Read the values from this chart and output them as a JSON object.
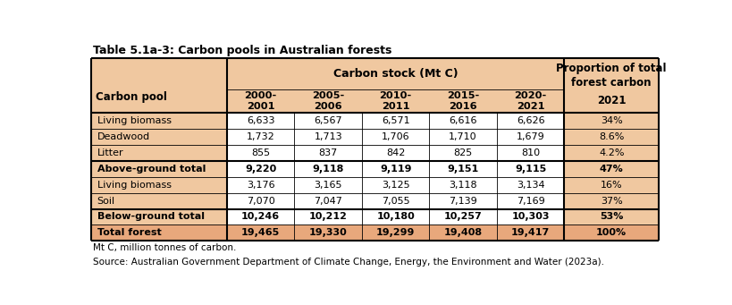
{
  "title": "Table 5.1a-3: Carbon pools in Australian forests",
  "footnote1": "Mt C, million tonnes of carbon.",
  "footnote2": "Source: Australian Government Department of Climate Change, Energy, the Environment and Water (2023a).",
  "col_header1": "Carbon stock (Mt C)",
  "col_header2": "Proportion of total\nforest carbon",
  "sub_headers": [
    "2000-\n2001",
    "2005-\n2006",
    "2010-\n2011",
    "2015-\n2016",
    "2020-\n2021"
  ],
  "row_label_header": "Carbon pool",
  "proportion_year": "2021",
  "rows": [
    {
      "label": "Living biomass",
      "bold": false,
      "values": [
        "6,633",
        "6,567",
        "6,571",
        "6,616",
        "6,626",
        "34%"
      ]
    },
    {
      "label": "Deadwood",
      "bold": false,
      "values": [
        "1,732",
        "1,713",
        "1,706",
        "1,710",
        "1,679",
        "8.6%"
      ]
    },
    {
      "label": "Litter",
      "bold": false,
      "values": [
        "855",
        "837",
        "842",
        "825",
        "810",
        "4.2%"
      ]
    },
    {
      "label": "Above-ground total",
      "bold": true,
      "values": [
        "9,220",
        "9,118",
        "9,119",
        "9,151",
        "9,115",
        "47%"
      ]
    },
    {
      "label": "Living biomass",
      "bold": false,
      "values": [
        "3,176",
        "3,165",
        "3,125",
        "3,118",
        "3,134",
        "16%"
      ]
    },
    {
      "label": "Soil",
      "bold": false,
      "values": [
        "7,070",
        "7,047",
        "7,055",
        "7,139",
        "7,169",
        "37%"
      ]
    },
    {
      "label": "Below-ground total",
      "bold": true,
      "values": [
        "10,246",
        "10,212",
        "10,180",
        "10,257",
        "10,303",
        "53%"
      ]
    },
    {
      "label": "Total forest",
      "bold": true,
      "values": [
        "19,465",
        "19,330",
        "19,299",
        "19,408",
        "19,417",
        "100%"
      ]
    }
  ],
  "colors": {
    "header_bg": "#E8A87C",
    "salmon_bg": "#F0C8A0",
    "white_bg": "#FFFFFF",
    "total_row_bg": "#E8A87C",
    "border": "#000000"
  },
  "thick_border_after_rows": [
    3,
    6
  ],
  "total_row_index": 7
}
